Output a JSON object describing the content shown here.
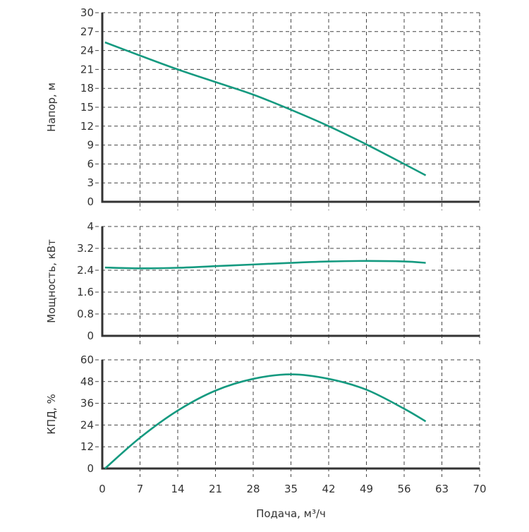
{
  "chart_data": [
    {
      "type": "line",
      "ylabel": "Напор, м",
      "xlim": [
        0,
        70
      ],
      "ylim": [
        0,
        30
      ],
      "yticks": [
        "0",
        "3",
        "6",
        "9",
        "12",
        "15",
        "18",
        "21",
        "24",
        "27",
        "30"
      ],
      "grid": true,
      "series": [
        {
          "name": "Напор",
          "color": "#159a80",
          "x": [
            0.5,
            7,
            14,
            21,
            28,
            35,
            42,
            49,
            56,
            60
          ],
          "y": [
            25.3,
            23.2,
            21.0,
            19.0,
            17.0,
            14.6,
            12.0,
            9.1,
            6.0,
            4.2
          ]
        }
      ]
    },
    {
      "type": "line",
      "ylabel": "Мощность, кВт",
      "xlim": [
        0,
        70
      ],
      "ylim": [
        0,
        4
      ],
      "yticks": [
        "0",
        "0.8",
        "1.6",
        "2.4",
        "3.2",
        "4"
      ],
      "grid": true,
      "series": [
        {
          "name": "Мощность",
          "color": "#159a80",
          "x": [
            0.5,
            7,
            14,
            21,
            28,
            35,
            42,
            49,
            56,
            60
          ],
          "y": [
            2.5,
            2.47,
            2.49,
            2.55,
            2.61,
            2.67,
            2.72,
            2.74,
            2.72,
            2.67
          ]
        }
      ]
    },
    {
      "type": "line",
      "ylabel": "КПД, %",
      "xlabel": "Подача, м³/ч",
      "xlim": [
        0,
        70
      ],
      "ylim": [
        0,
        60
      ],
      "yticks": [
        "0",
        "12",
        "24",
        "36",
        "48",
        "60"
      ],
      "xticks": [
        "0",
        "7",
        "14",
        "21",
        "28",
        "35",
        "42",
        "49",
        "56",
        "63",
        "70"
      ],
      "grid": true,
      "series": [
        {
          "name": "КПД",
          "color": "#159a80",
          "x": [
            0.5,
            7,
            14,
            21,
            28,
            35,
            42,
            49,
            56,
            60
          ],
          "y": [
            0,
            17,
            32,
            43,
            49.5,
            52,
            49.5,
            43.5,
            33,
            26
          ]
        }
      ]
    }
  ]
}
